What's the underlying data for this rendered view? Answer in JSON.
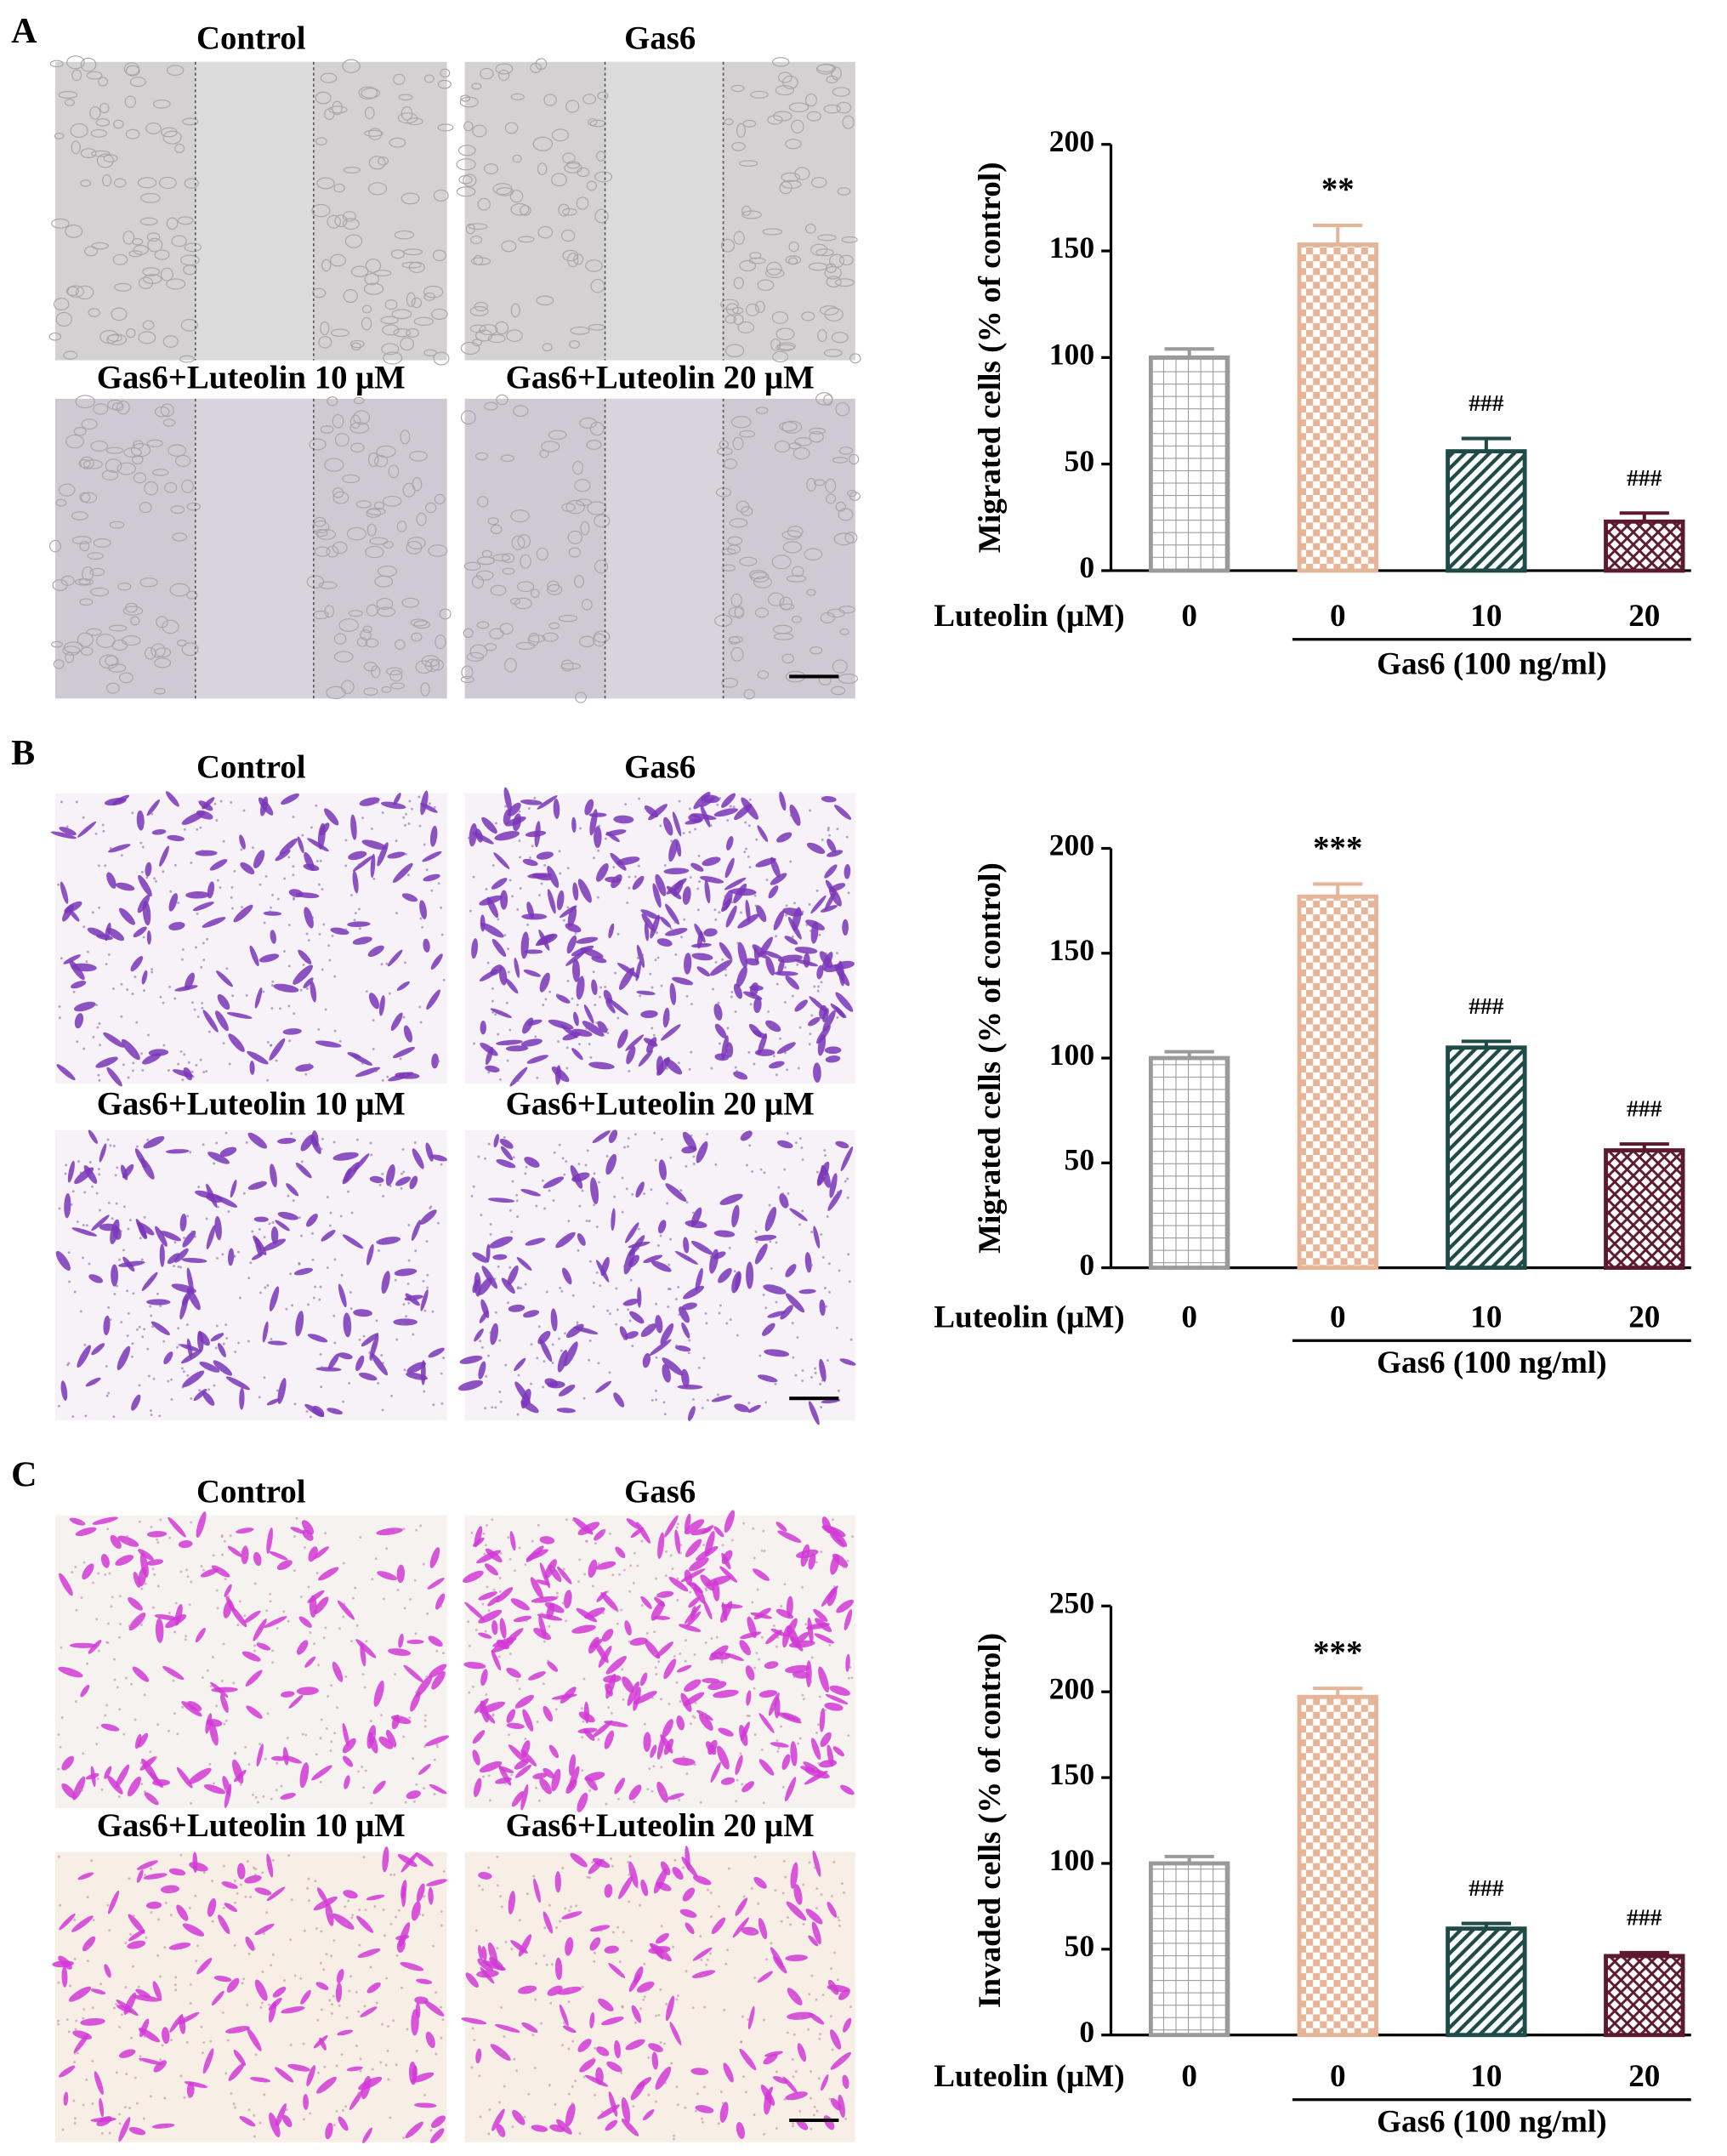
{
  "panels": [
    {
      "label": "A",
      "images": [
        "Control",
        "Gas6",
        "Gas6+Luteolin 10 μM",
        "Gas6+Luteolin 20 μM"
      ]
    },
    {
      "label": "B",
      "images": [
        "Control",
        "Gas6",
        "Gas6+Luteolin 10 μM",
        "Gas6+Luteolin 20 μM"
      ]
    },
    {
      "label": "C",
      "images": [
        "Control",
        "Gas6",
        "Gas6+Luteolin 10 μM",
        "Gas6+Luteolin 20 μM"
      ]
    }
  ],
  "chart_data": [
    {
      "type": "bar",
      "ylabel": "Migrated cells (% of control)",
      "xlabel": "Luteolin (μM)",
      "group_label": "Gas6 (100 ng/ml)",
      "categories": [
        "0",
        "0",
        "10",
        "20"
      ],
      "values": [
        100,
        153,
        56,
        23
      ],
      "errors": [
        4,
        9,
        6,
        4
      ],
      "annotations": [
        null,
        "**",
        "###",
        "###"
      ],
      "colors": [
        "#9a9a9a",
        "#e6b598",
        "#1e4b48",
        "#5c1a2e"
      ],
      "patterns": [
        "grid",
        "checker",
        "diagonal",
        "crosshatch"
      ],
      "ylim": [
        0,
        200
      ],
      "yticks": [
        0,
        50,
        100,
        150,
        200
      ]
    },
    {
      "type": "bar",
      "ylabel": "Migrated cells (% of control)",
      "xlabel": "Luteolin (μM)",
      "group_label": "Gas6 (100 ng/ml)",
      "categories": [
        "0",
        "0",
        "10",
        "20"
      ],
      "values": [
        100,
        177,
        105,
        56
      ],
      "errors": [
        3,
        6,
        3,
        3
      ],
      "annotations": [
        null,
        "***",
        "###",
        "###"
      ],
      "colors": [
        "#9a9a9a",
        "#e6b598",
        "#1e4b48",
        "#5c1a2e"
      ],
      "patterns": [
        "grid",
        "checker",
        "diagonal",
        "crosshatch"
      ],
      "ylim": [
        0,
        200
      ],
      "yticks": [
        0,
        50,
        100,
        150,
        200
      ]
    },
    {
      "type": "bar",
      "ylabel": "Invaded cells (% of control)",
      "xlabel": "Luteolin (μM)",
      "group_label": "Gas6 (100 ng/ml)",
      "categories": [
        "0",
        "0",
        "10",
        "20"
      ],
      "values": [
        100,
        197,
        62,
        46
      ],
      "errors": [
        4,
        5,
        3,
        2
      ],
      "annotations": [
        null,
        "***",
        "###",
        "###"
      ],
      "colors": [
        "#9a9a9a",
        "#e6b598",
        "#1e4b48",
        "#5c1a2e"
      ],
      "patterns": [
        "grid",
        "checker",
        "diagonal",
        "crosshatch"
      ],
      "ylim": [
        0,
        250
      ],
      "yticks": [
        0,
        50,
        100,
        150,
        200,
        250
      ]
    }
  ]
}
